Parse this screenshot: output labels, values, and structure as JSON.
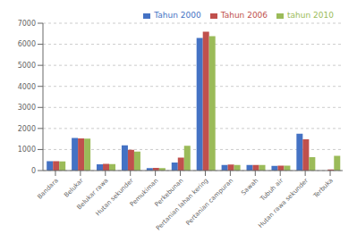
{
  "chart_data": {
    "type": "bar",
    "categories": [
      "Bandara",
      "Belukar",
      "Belukar rawa",
      "Hutan sekunder",
      "Pemukiman",
      "Perkebunan",
      "Pertanian lahan kering",
      "Pertanian campuran",
      "Sawah",
      "Tubuh air",
      "Hutan rawa sekunder",
      "Terbuka"
    ],
    "series": [
      {
        "name": "Tahun 2000",
        "color": "#4472C4",
        "values": [
          450,
          1550,
          300,
          1200,
          120,
          380,
          6300,
          270,
          260,
          220,
          1750,
          0
        ]
      },
      {
        "name": "Tahun 2006",
        "color": "#C0504D",
        "values": [
          450,
          1530,
          320,
          990,
          130,
          620,
          6600,
          290,
          270,
          230,
          1480,
          50
        ]
      },
      {
        "name": "tahun 2010",
        "color": "#9BBB59",
        "values": [
          430,
          1520,
          310,
          900,
          120,
          1180,
          6380,
          260,
          260,
          230,
          640,
          700
        ]
      }
    ],
    "ylim": [
      0,
      7000
    ],
    "yticks": [
      0,
      1000,
      2000,
      3000,
      4000,
      5000,
      6000,
      7000
    ],
    "grid": true,
    "legend": "upper right"
  }
}
